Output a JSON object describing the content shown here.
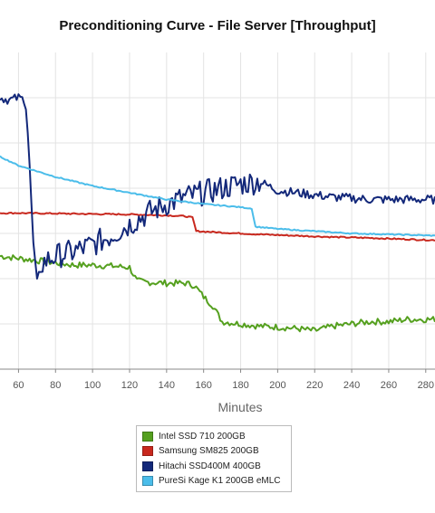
{
  "chart_data": {
    "type": "line",
    "title": "Preconditioning Curve - File Server [Throughput]",
    "xlabel": "Minutes",
    "ylabel": "",
    "xlim": [
      50,
      285
    ],
    "ylim": [
      0,
      7
    ],
    "grid": true,
    "legend": "bottom",
    "x_ticks": [
      "60",
      "80",
      "100",
      "120",
      "140",
      "160",
      "180",
      "200",
      "220",
      "240",
      "260",
      "280"
    ],
    "series": [
      {
        "name": "Intel SSD 710 200GB",
        "color": "#55a01f",
        "x": [
          50,
          60,
          70,
          80,
          90,
          100,
          110,
          120,
          124,
          130,
          140,
          150,
          155,
          160,
          165,
          170,
          180,
          190,
          200,
          210,
          220,
          230,
          240,
          250,
          260,
          270,
          285
        ],
        "y": [
          2.5,
          2.45,
          2.4,
          2.35,
          2.3,
          2.3,
          2.28,
          2.25,
          1.95,
          1.92,
          1.9,
          1.9,
          1.85,
          1.6,
          1.4,
          1.05,
          1.0,
          0.95,
          0.93,
          0.9,
          0.85,
          0.95,
          1.0,
          1.05,
          1.05,
          1.1,
          1.1
        ]
      },
      {
        "name": "Samsung SM825 200GB",
        "color": "#c8281e",
        "x": [
          50,
          60,
          80,
          100,
          120,
          140,
          150,
          154,
          156,
          170,
          190,
          210,
          230,
          250,
          270,
          285
        ],
        "y": [
          3.45,
          3.45,
          3.44,
          3.43,
          3.42,
          3.4,
          3.38,
          3.35,
          3.05,
          3.02,
          2.98,
          2.95,
          2.92,
          2.9,
          2.87,
          2.85
        ]
      },
      {
        "name": "Hitachi SSD400M 400GB",
        "color": "#13287a",
        "x": [
          50,
          55,
          60,
          64,
          66,
          68,
          70,
          72,
          75,
          80,
          90,
          100,
          110,
          120,
          130,
          140,
          150,
          160,
          170,
          180,
          190,
          200,
          210,
          220,
          230,
          240,
          250,
          260,
          270,
          285
        ],
        "y": [
          6.0,
          5.95,
          6.0,
          5.95,
          4.5,
          2.8,
          2.0,
          2.3,
          2.4,
          2.5,
          2.6,
          2.75,
          2.95,
          3.2,
          3.45,
          3.65,
          3.8,
          3.9,
          4.0,
          4.1,
          4.15,
          3.95,
          3.9,
          3.85,
          3.8,
          3.78,
          3.75,
          3.75,
          3.75,
          3.75
        ]
      },
      {
        "name": "PureSi Kage K1 200GB eMLC",
        "color": "#4bbdea",
        "x": [
          50,
          60,
          80,
          100,
          120,
          140,
          160,
          180,
          186,
          188,
          200,
          220,
          240,
          260,
          285
        ],
        "y": [
          4.7,
          4.5,
          4.25,
          4.05,
          3.9,
          3.75,
          3.65,
          3.58,
          3.55,
          3.15,
          3.1,
          3.05,
          3.0,
          2.98,
          2.95
        ]
      }
    ]
  }
}
